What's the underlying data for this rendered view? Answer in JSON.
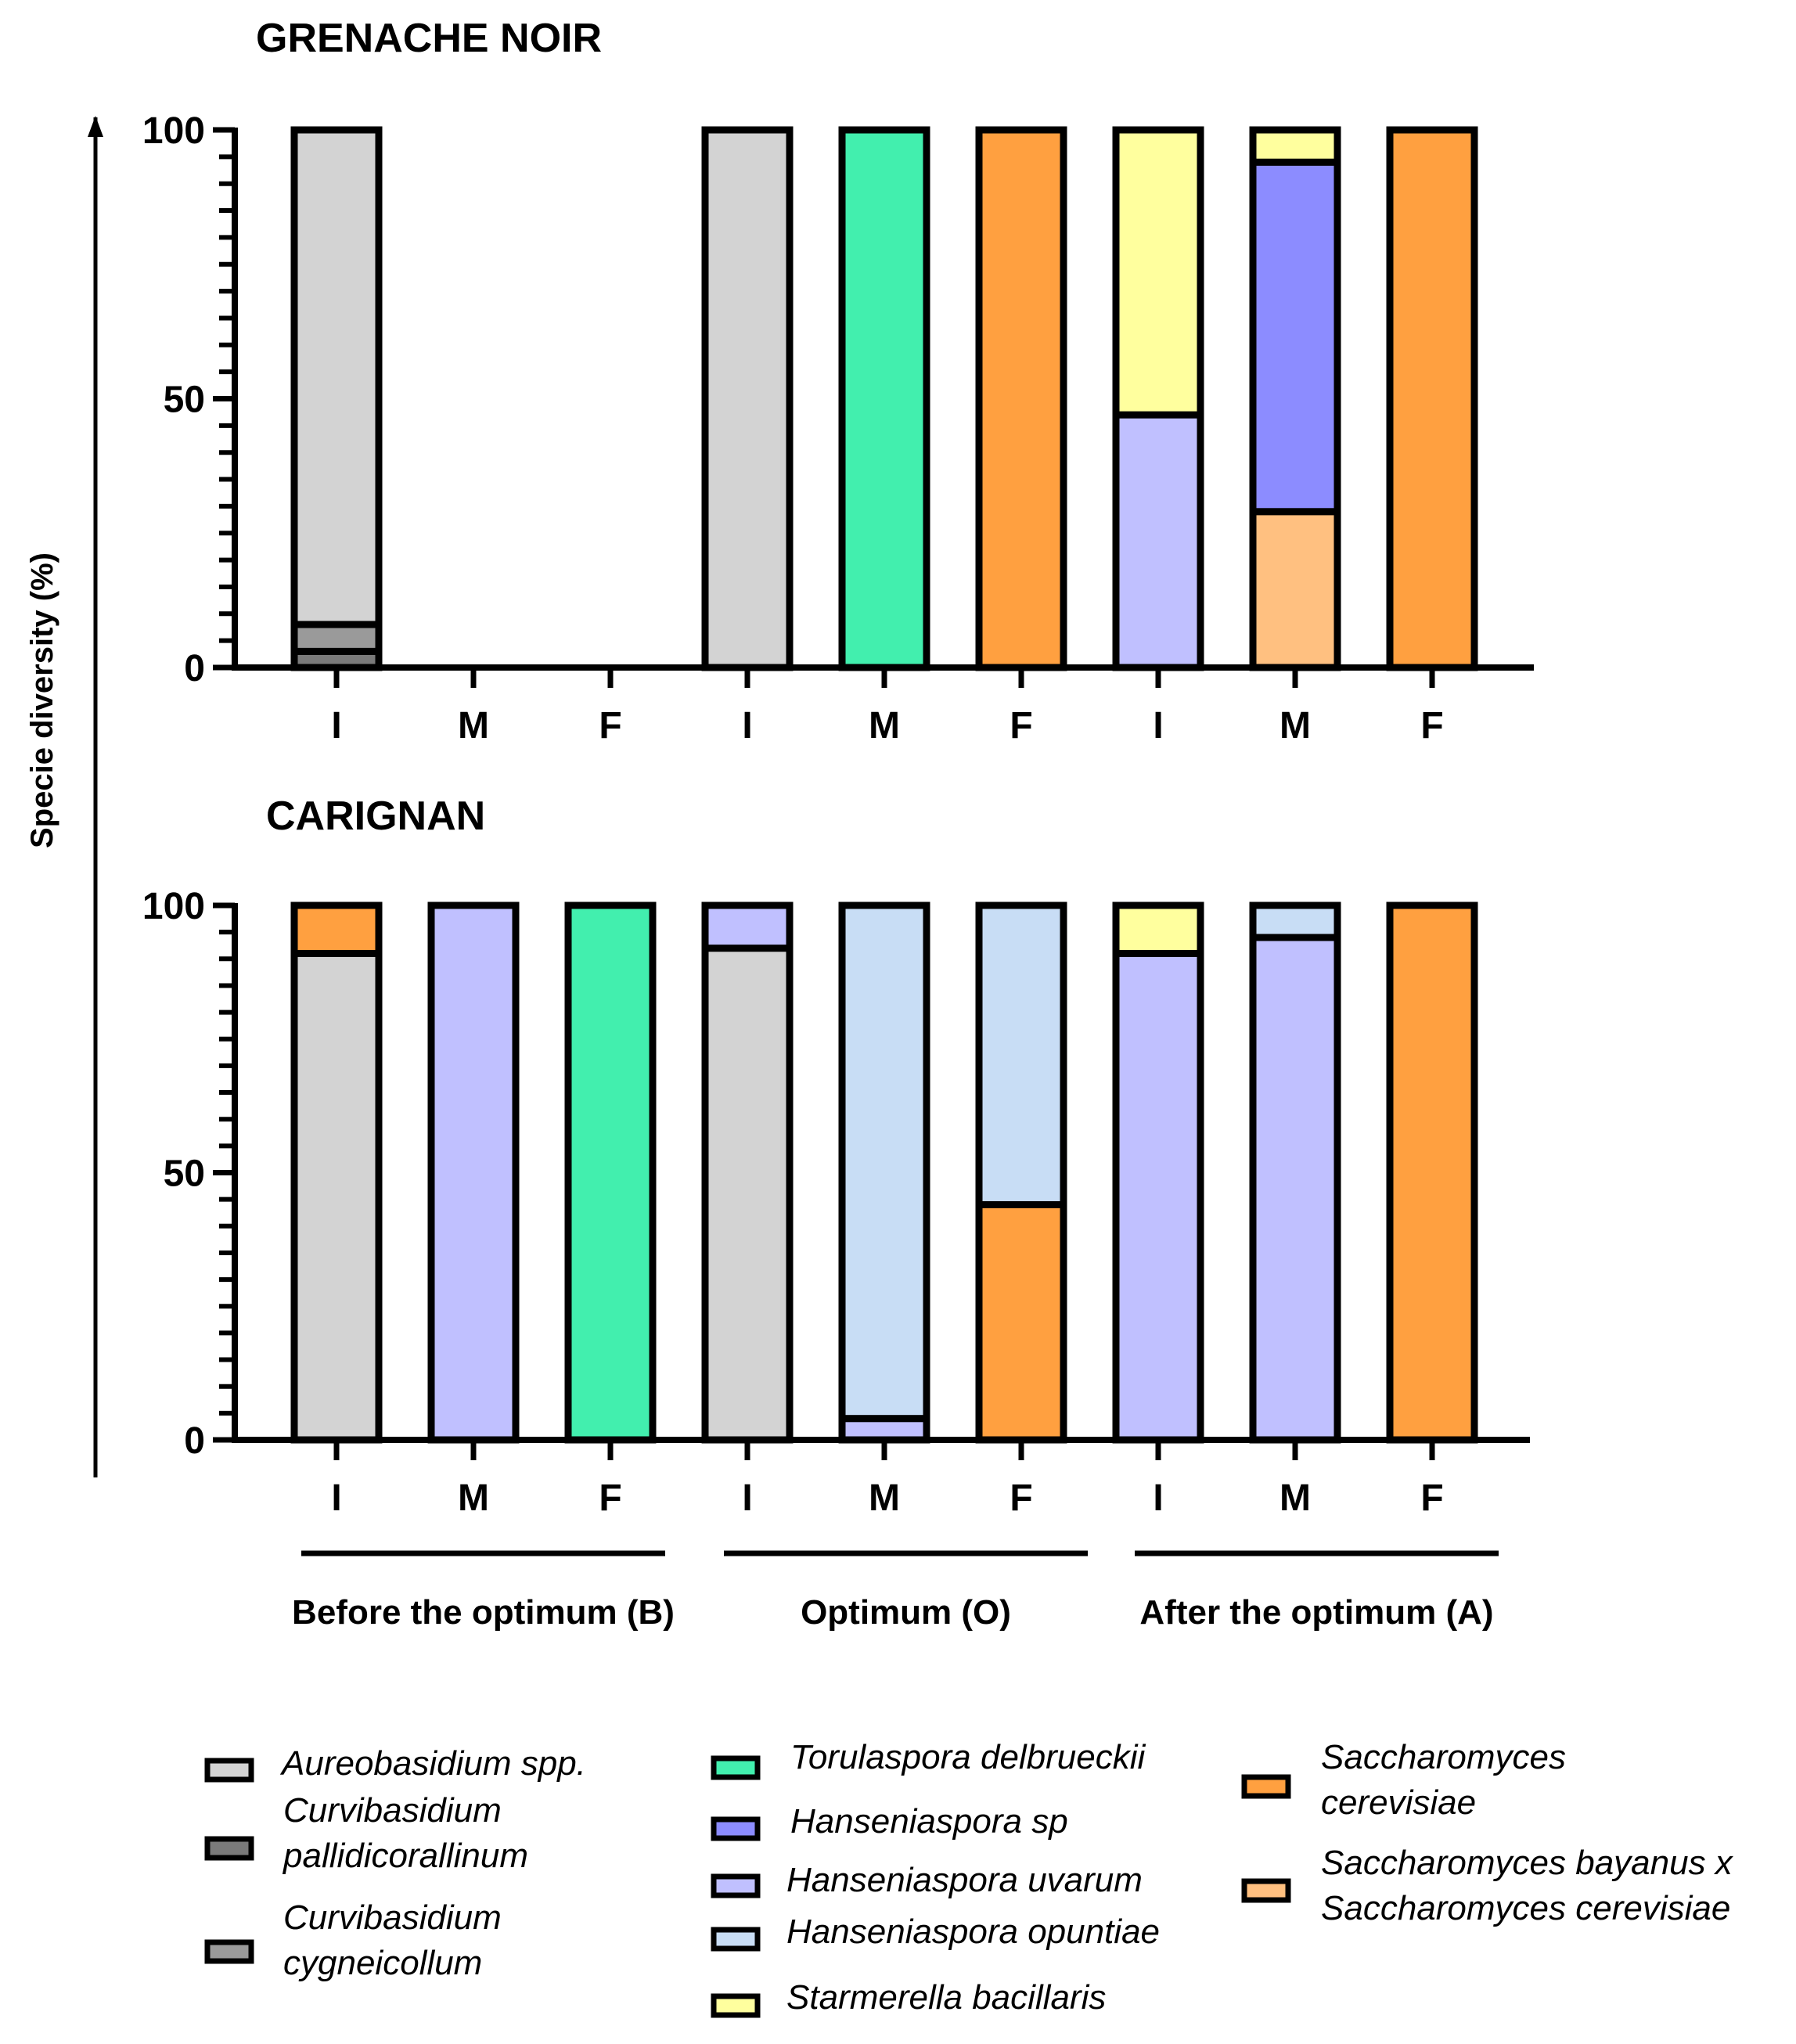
{
  "chart_data": {
    "type": "bar",
    "stacked": true,
    "ylabel": "Specie diversity (%)",
    "ylim": [
      0,
      100
    ],
    "yticks": [
      0,
      50,
      100
    ],
    "categories": [
      "I",
      "M",
      "F",
      "I",
      "M",
      "F",
      "I",
      "M",
      "F"
    ],
    "groups": [
      {
        "label": "Before the optimum (B)",
        "span": [
          0,
          2
        ]
      },
      {
        "label": "Optimum (O)",
        "span": [
          3,
          5
        ]
      },
      {
        "label": "After the optimum (A)",
        "span": [
          6,
          8
        ]
      }
    ],
    "species": [
      {
        "key": "aureo",
        "color": "#d3d3d3",
        "legend_lines": [
          "Aureobasidium spp."
        ]
      },
      {
        "key": "cpall",
        "color": "#7a7a7a",
        "legend_lines": [
          "Curvibasidium",
          "pallidicorallinum"
        ]
      },
      {
        "key": "ccyg",
        "color": "#9a9a9a",
        "legend_lines": [
          "Curvibasidium",
          "cygneicollum"
        ]
      },
      {
        "key": "torula",
        "color": "#42efae",
        "legend_lines": [
          "Torulaspora delbrueckii"
        ]
      },
      {
        "key": "hsp",
        "color": "#8c8cff",
        "legend_lines": [
          "Hanseniaspora sp"
        ]
      },
      {
        "key": "huva",
        "color": "#c0c0ff",
        "legend_lines": [
          "Hanseniaspora uvarum"
        ]
      },
      {
        "key": "hopu",
        "color": "#c8ddf5",
        "legend_lines": [
          "Hanseniaspora opuntiae"
        ]
      },
      {
        "key": "starm",
        "color": "#ffff9e",
        "legend_lines": [
          "Starmerella bacillaris"
        ]
      },
      {
        "key": "scer",
        "color": "#ffa040",
        "legend_lines": [
          "Saccharomyces",
          "cerevisiae"
        ]
      },
      {
        "key": "sbay",
        "color": "#ffc080",
        "legend_lines": [
          "Saccharomyces bayanus x",
          "Saccharomyces cerevisiae"
        ]
      }
    ],
    "panels": [
      {
        "title": "GRENACHE NOIR",
        "bars": [
          [
            {
              "sp": "cpall",
              "v": 3
            },
            {
              "sp": "ccyg",
              "v": 5
            },
            {
              "sp": "aureo",
              "v": 92
            }
          ],
          [],
          [],
          [
            {
              "sp": "aureo",
              "v": 100
            }
          ],
          [
            {
              "sp": "torula",
              "v": 100
            }
          ],
          [
            {
              "sp": "scer",
              "v": 100
            }
          ],
          [
            {
              "sp": "huva",
              "v": 47
            },
            {
              "sp": "starm",
              "v": 53
            }
          ],
          [
            {
              "sp": "sbay",
              "v": 29
            },
            {
              "sp": "hsp",
              "v": 65
            },
            {
              "sp": "starm",
              "v": 6
            }
          ],
          [
            {
              "sp": "scer",
              "v": 100
            }
          ]
        ]
      },
      {
        "title": "CARIGNAN",
        "bars": [
          [
            {
              "sp": "aureo",
              "v": 91
            },
            {
              "sp": "scer",
              "v": 9
            }
          ],
          [
            {
              "sp": "huva",
              "v": 100
            }
          ],
          [
            {
              "sp": "torula",
              "v": 100
            }
          ],
          [
            {
              "sp": "aureo",
              "v": 92
            },
            {
              "sp": "huva",
              "v": 8
            }
          ],
          [
            {
              "sp": "huva",
              "v": 4
            },
            {
              "sp": "hopu",
              "v": 96
            }
          ],
          [
            {
              "sp": "scer",
              "v": 44
            },
            {
              "sp": "hopu",
              "v": 56
            }
          ],
          [
            {
              "sp": "huva",
              "v": 91
            },
            {
              "sp": "starm",
              "v": 9
            }
          ],
          [
            {
              "sp": "huva",
              "v": 94
            },
            {
              "sp": "hopu",
              "v": 6
            }
          ],
          [
            {
              "sp": "scer",
              "v": 100
            }
          ]
        ]
      }
    ]
  }
}
